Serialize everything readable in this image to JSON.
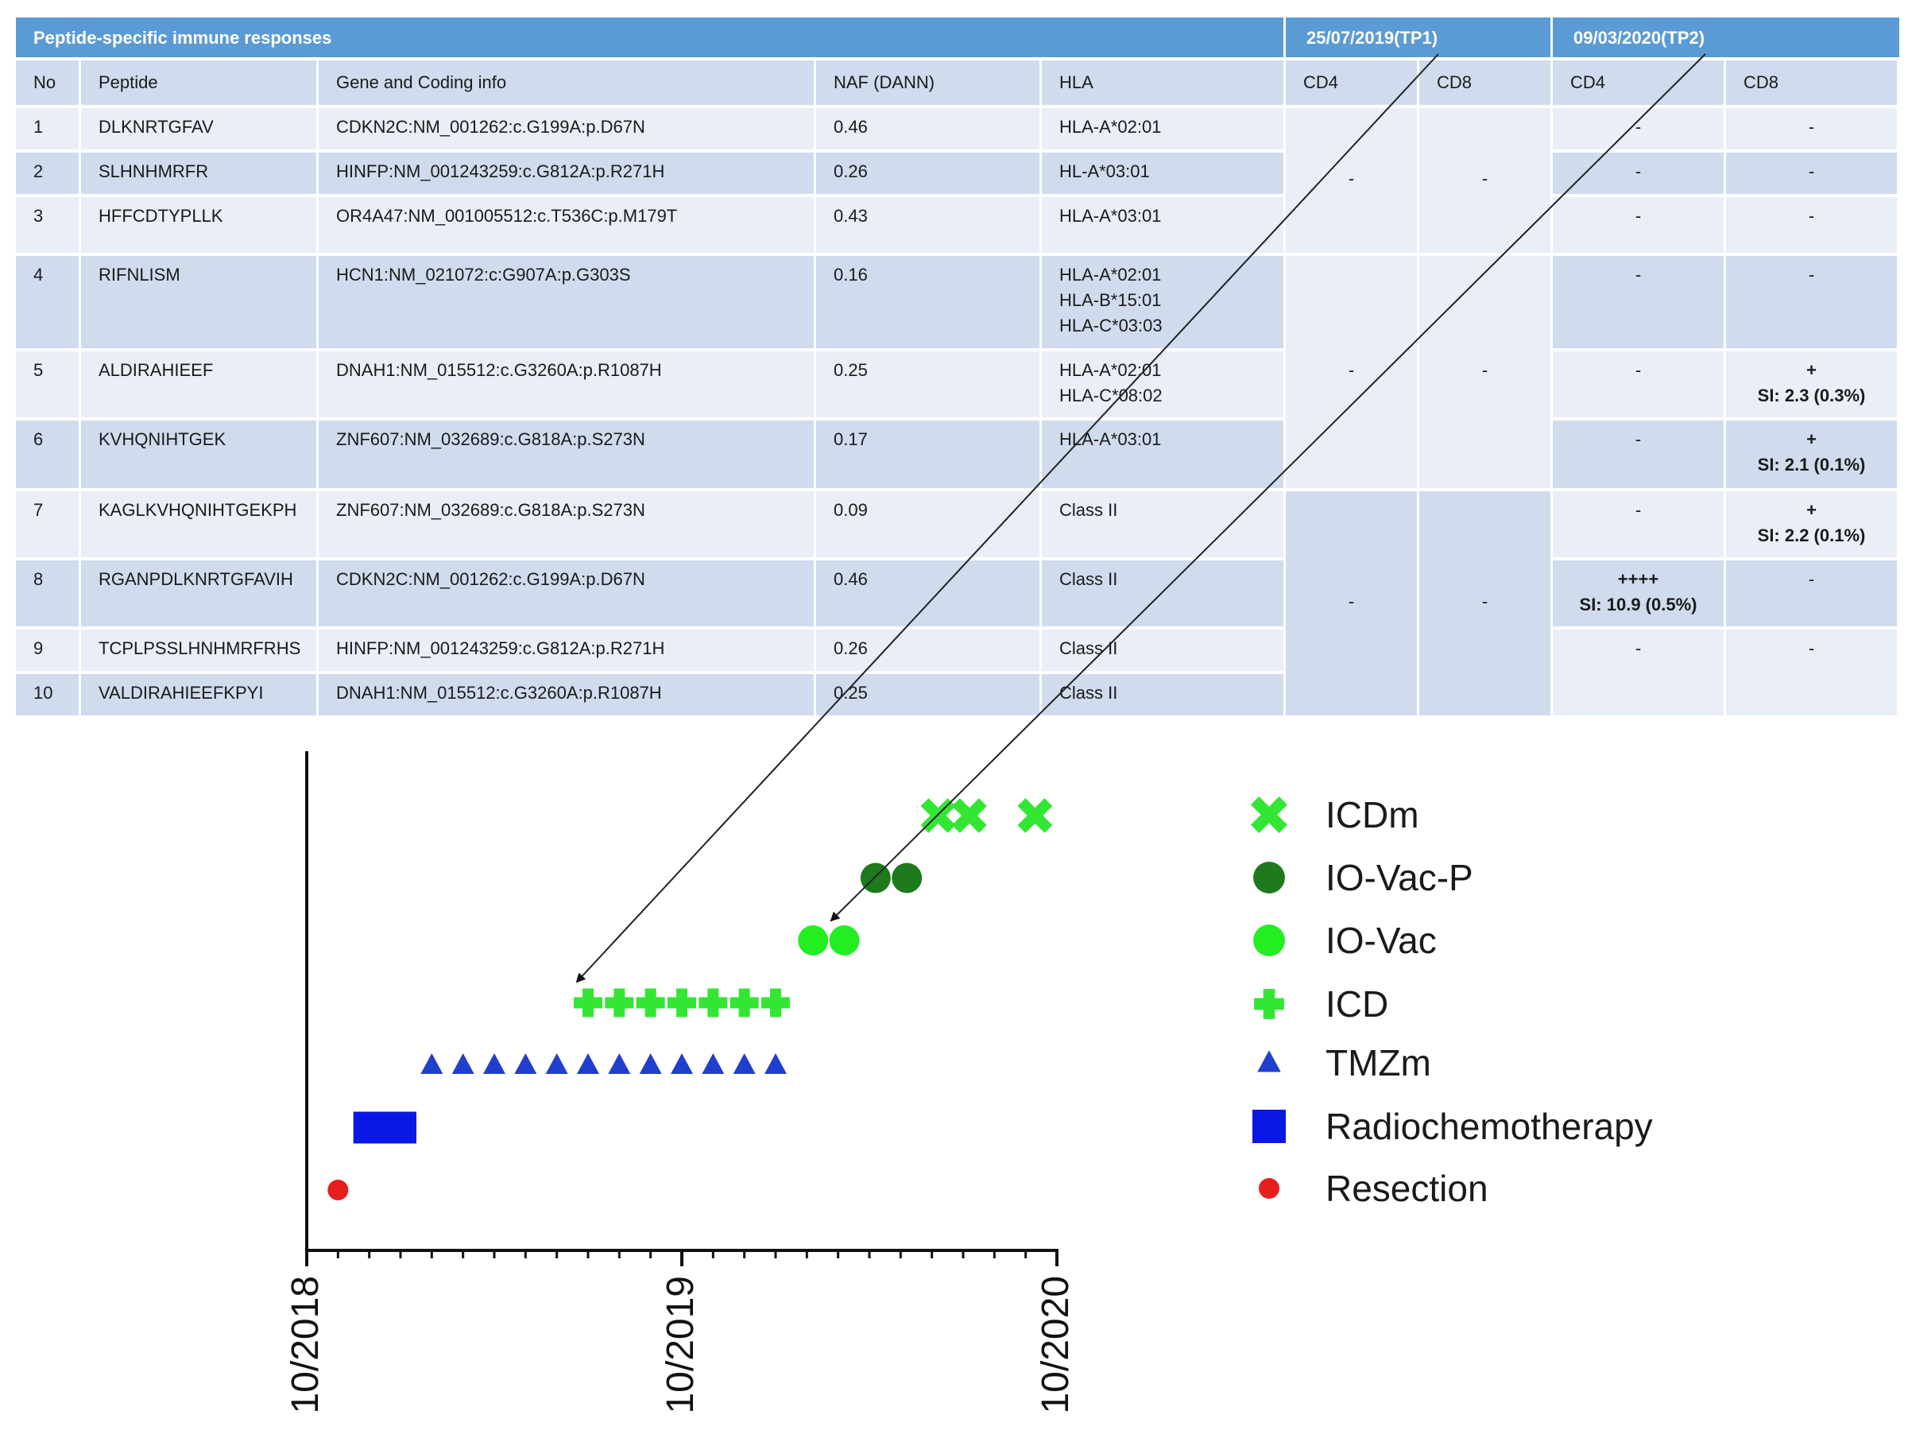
{
  "table": {
    "title": "Peptide-specific immune responses",
    "tp1": "25/07/2019(TP1)",
    "tp2": "09/03/2020(TP2)",
    "headers": [
      "No",
      "Peptide",
      "Gene and Coding info",
      "NAF (DANN)",
      "HLA",
      "CD4",
      "CD8",
      "CD4",
      "CD8"
    ],
    "rows": [
      {
        "no": "1",
        "peptide": "DLKNRTGFAV",
        "gene": "CDKN2C:NM_001262:c.G199A:p.D67N",
        "naf": "0.46",
        "hla": "HLA-A*02:01",
        "tp2_cd4": "-",
        "tp2_cd8": "-"
      },
      {
        "no": "2",
        "peptide": "SLHNHMRFR",
        "gene": "HINFP:NM_001243259:c.G812A:p.R271H",
        "naf": "0.26",
        "hla": "HL-A*03:01",
        "tp2_cd4": "-",
        "tp2_cd8": "-"
      },
      {
        "no": "3",
        "peptide": "HFFCDTYPLLK",
        "gene": "OR4A47:NM_001005512:c.T536C:p.M179T",
        "naf": "0.43",
        "hla": "HLA-A*03:01",
        "tp2_cd4": "-",
        "tp2_cd8": "-"
      },
      {
        "no": "4",
        "peptide": "RIFNLISM",
        "gene": "HCN1:NM_021072:c:G907A:p.G303S",
        "naf": "0.16",
        "hla": "HLA-A*02:01\nHLA-B*15:01\nHLA-C*03:03",
        "tp2_cd4": "-",
        "tp2_cd8": "-"
      },
      {
        "no": "5",
        "peptide": "ALDIRAHIEEF",
        "gene": "DNAH1:NM_015512:c.G3260A:p.R1087H",
        "naf": "0.25",
        "hla": "HLA-A*02:01\nHLA-C*08:02",
        "tp2_cd4": "-",
        "tp2_cd8": "+\nSI: 2.3 (0.3%)"
      },
      {
        "no": "6",
        "peptide": "KVHQNIHTGEK",
        "gene": "ZNF607:NM_032689:c.G818A:p.S273N",
        "naf": "0.17",
        "hla": "HLA-A*03:01",
        "tp2_cd4": "-",
        "tp2_cd8": "+\nSI: 2.1 (0.1%)"
      },
      {
        "no": "7",
        "peptide": "KAGLKVHQNIHTGEKPH",
        "gene": "ZNF607:NM_032689:c.G818A:p.S273N",
        "naf": "0.09",
        "hla": "Class II",
        "tp2_cd4": "-",
        "tp2_cd8": "+\nSI: 2.2 (0.1%)"
      },
      {
        "no": "8",
        "peptide": "RGANPDLKNRTGFAVIH",
        "gene": "CDKN2C:NM_001262:c.G199A:p.D67N",
        "naf": "0.46",
        "hla": "Class II",
        "tp2_cd4": "++++\nSI: 10.9 (0.5%)",
        "tp2_cd8": "-"
      },
      {
        "no": "9",
        "peptide": "TCPLPSSLHNHMRFRHS",
        "gene": "HINFP:NM_001243259:c.G812A:p.R271H",
        "naf": "0.26",
        "hla": "Class II",
        "tp2_cd4": "-",
        "tp2_cd8": "-"
      },
      {
        "no": "10",
        "peptide": "VALDIRAHIEEFKPYI",
        "gene": "DNAH1:NM_015512:c.G3260A:p.R1087H",
        "naf": "0.25",
        "hla": "Class II",
        "tp2_cd4": "",
        "tp2_cd8": ""
      }
    ],
    "tp1_groups": [
      {
        "rows": "1-3",
        "cd4": "-",
        "cd8": "-"
      },
      {
        "rows": "4-6",
        "cd4": "-",
        "cd8": "-"
      },
      {
        "rows": "7-10",
        "cd4": "-",
        "cd8": "-"
      }
    ]
  },
  "chart_data": {
    "type": "scatter",
    "title": "",
    "xlabel": "",
    "ylabel": "",
    "x_unit": "months since 10/2018",
    "xlim": [
      0,
      24
    ],
    "x_ticks": [
      "10/2018",
      "10/2019",
      "10/2020"
    ],
    "x_tick_values": [
      0,
      12,
      24
    ],
    "legend_position": "right",
    "series": [
      {
        "name": "ICDm",
        "marker": "x",
        "color": "#33e633",
        "row": 7,
        "x": [
          20.2,
          21.2,
          23.3
        ]
      },
      {
        "name": "IO-Vac-P",
        "marker": "circle",
        "color": "#1d7a1d",
        "row": 6,
        "x": [
          18.2,
          19.2
        ]
      },
      {
        "name": "IO-Vac",
        "marker": "circle",
        "color": "#22ee22",
        "row": 5,
        "x": [
          16.2,
          17.2
        ]
      },
      {
        "name": "ICD",
        "marker": "plus",
        "color": "#33e633",
        "row": 4,
        "x": [
          9.0,
          10.0,
          11.0,
          12.0,
          13.0,
          14.0,
          15.0
        ]
      },
      {
        "name": "TMZm",
        "marker": "triangle",
        "color": "#1f3fcc",
        "row": 3,
        "x": [
          4.0,
          5.0,
          6.0,
          7.0,
          8.0,
          9.0,
          10.0,
          11.0,
          12.0,
          13.0,
          14.0,
          15.0
        ]
      },
      {
        "name": "Radiochemotherapy",
        "marker": "square",
        "color": "#0a18e6",
        "row": 2,
        "x": [
          2.0,
          3.0
        ]
      },
      {
        "name": "Resection",
        "marker": "circle-small",
        "color": "#e61e1e",
        "row": 1,
        "x": [
          1.0
        ]
      }
    ],
    "annotations": [
      {
        "label": "TP1",
        "points_to": "ICD"
      },
      {
        "label": "TP2",
        "points_to": "IO-Vac"
      }
    ]
  }
}
